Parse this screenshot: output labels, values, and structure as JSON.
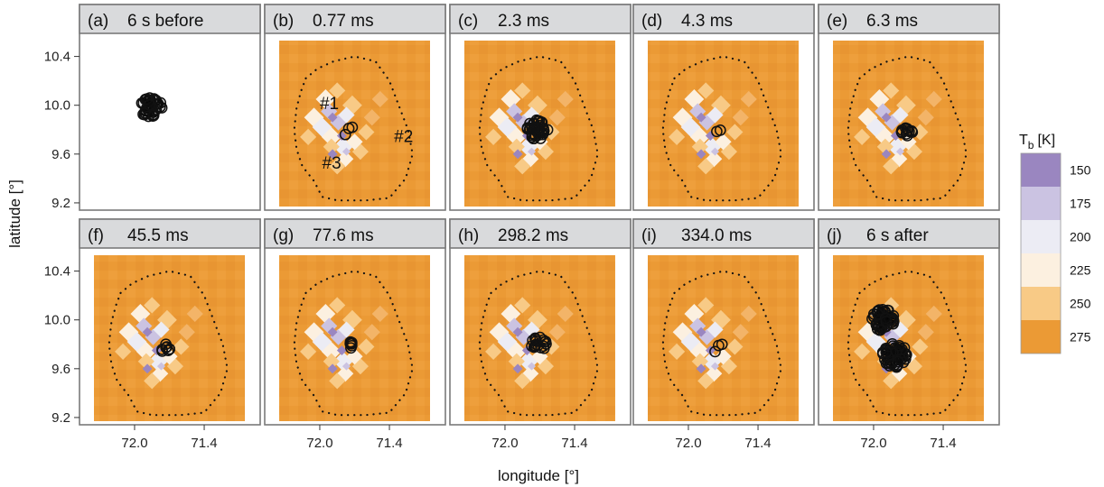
{
  "chart_data": {
    "type": "heatmap",
    "ylabel": "latitude [°]",
    "xlabel": "longitude [°]",
    "xlim": [
      72.35,
      71.05
    ],
    "ylim": [
      9.17,
      10.53
    ],
    "x_ticks": [
      "72.0",
      "71.4"
    ],
    "x_tick_values": [
      72.0,
      71.4
    ],
    "y_ticks": [
      "10.4",
      "10.0",
      "9.6",
      "9.2"
    ],
    "y_tick_values": [
      10.4,
      10.0,
      9.6,
      9.2
    ],
    "colorbar": {
      "title_main": "T",
      "title_sub": "b",
      "title_unit": "[K]",
      "levels": [
        "150",
        "175",
        "200",
        "225",
        "250",
        "275"
      ],
      "colors": [
        "#9a86c0",
        "#cbc3e2",
        "#ececf4",
        "#fcf0e0",
        "#f8ca86",
        "#eb9a35"
      ]
    },
    "annotations": [
      {
        "text": "#1",
        "lon": 72.0,
        "lat": 9.97
      },
      {
        "text": "#2",
        "lon": 71.36,
        "lat": 9.7
      },
      {
        "text": "#3",
        "lon": 71.98,
        "lat": 9.48
      }
    ],
    "panels": [
      {
        "letter": "(a)",
        "label": "6 s before",
        "clusters": [
          {
            "lon": 71.86,
            "lat": 9.98,
            "r": 0.1,
            "n": 42,
            "filled": true
          }
        ]
      },
      {
        "letter": "(b)",
        "label": "0.77 ms",
        "clusters": [
          {
            "lon": 71.75,
            "lat": 9.79,
            "r": 0.03,
            "n": 3,
            "filled": false
          }
        ]
      },
      {
        "letter": "(c)",
        "label": "2.3 ms",
        "clusters": [
          {
            "lon": 71.72,
            "lat": 9.8,
            "r": 0.09,
            "n": 40,
            "filled": false
          }
        ]
      },
      {
        "letter": "(d)",
        "label": "4.3 ms",
        "clusters": [
          {
            "lon": 71.74,
            "lat": 9.78,
            "r": 0.015,
            "n": 2,
            "filled": false
          }
        ]
      },
      {
        "letter": "(e)",
        "label": "6.3 ms",
        "clusters": [
          {
            "lon": 71.71,
            "lat": 9.79,
            "r": 0.05,
            "n": 11,
            "filled": false
          }
        ]
      },
      {
        "letter": "(f)",
        "label": "45.5 ms",
        "clusters": [
          {
            "lon": 71.74,
            "lat": 9.77,
            "r": 0.045,
            "n": 8,
            "filled": false
          }
        ]
      },
      {
        "letter": "(g)",
        "label": "77.6 ms",
        "clusters": [
          {
            "lon": 71.74,
            "lat": 9.8,
            "r": 0.04,
            "n": 6,
            "filled": false
          }
        ]
      },
      {
        "letter": "(h)",
        "label": "298.2 ms",
        "clusters": [
          {
            "lon": 71.71,
            "lat": 9.81,
            "r": 0.07,
            "n": 18,
            "filled": false
          }
        ]
      },
      {
        "letter": "(i)",
        "label": "334.0 ms",
        "clusters": [
          {
            "lon": 71.74,
            "lat": 9.77,
            "r": 0.02,
            "n": 3,
            "filled": false
          }
        ]
      },
      {
        "letter": "(j)",
        "label": "6 s after",
        "clusters": [
          {
            "lon": 71.92,
            "lat": 10.0,
            "r": 0.1,
            "n": 50,
            "filled": true
          },
          {
            "lon": 71.82,
            "lat": 9.71,
            "r": 0.11,
            "n": 60,
            "filled": true
          }
        ]
      }
    ]
  }
}
